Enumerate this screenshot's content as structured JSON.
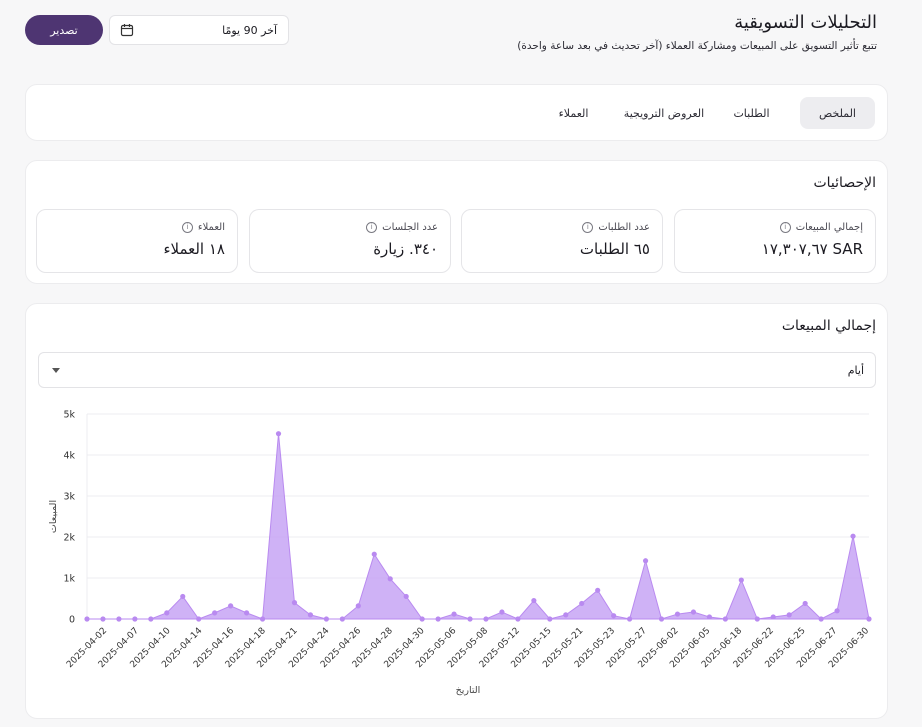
{
  "header": {
    "title": "التحليلات التسويقية",
    "subtitle": "تتبع تأثير التسويق على المبيعات ومشاركة العملاء (آخر تحديث في بعد ساعة واحدة)",
    "export_label": "تصدير",
    "date_range": "آخر 90 يومًا",
    "calendar_icon": "calendar-icon"
  },
  "tabs": [
    {
      "label": "الملخص",
      "active": true
    },
    {
      "label": "الطلبات",
      "active": false
    },
    {
      "label": "العروض الترويجية",
      "active": false
    },
    {
      "label": "العملاء",
      "active": false
    }
  ],
  "stats": {
    "title": "الإحصائيات",
    "items": [
      {
        "label": "إجمالي المبيعات",
        "value": "١٧,٣٠٧,٦٧ SAR"
      },
      {
        "label": "عدد الطلبات",
        "value": "٦٥ الطلبات"
      },
      {
        "label": "عدد الجلسات",
        "value": "٣٤٠. زيارة"
      },
      {
        "label": "العملاء",
        "value": "١٨ العملاء"
      }
    ],
    "info_icon": "info-icon"
  },
  "sales_chart": {
    "title": "إجمالي المبيعات",
    "granularity": "أيام"
  },
  "chart_data": {
    "type": "area",
    "title": "",
    "xlabel": "التاريخ",
    "ylabel": "المبيعات",
    "ylim": [
      0,
      5000
    ],
    "yticks": [
      "0",
      "1k",
      "2k",
      "3k",
      "4k",
      "5k"
    ],
    "xtick_labels": [
      "2025-04-02",
      "2025-04-07",
      "2025-04-10",
      "2025-04-14",
      "2025-04-16",
      "2025-04-18",
      "2025-04-21",
      "2025-04-24",
      "2025-04-26",
      "2025-04-28",
      "2025-04-30",
      "2025-05-06",
      "2025-05-08",
      "2025-05-12",
      "2025-05-15",
      "2025-05-21",
      "2025-05-23",
      "2025-05-27",
      "2025-06-02",
      "2025-06-05",
      "2025-06-18",
      "2025-06-22",
      "2025-06-25",
      "2025-06-27",
      "2025-06-30"
    ],
    "values": [
      0,
      0,
      0,
      0,
      0,
      150,
      550,
      0,
      150,
      320,
      150,
      0,
      4520,
      400,
      100,
      0,
      0,
      320,
      1580,
      980,
      550,
      0,
      0,
      120,
      0,
      0,
      170,
      0,
      450,
      0,
      100,
      380,
      700,
      80,
      0,
      1420,
      0,
      120,
      170,
      50,
      0,
      950,
      0,
      50,
      100,
      380,
      0,
      200,
      2020,
      0
    ],
    "grid": true,
    "color": "#c7a5f5",
    "stroke_color": "#b98af0"
  }
}
